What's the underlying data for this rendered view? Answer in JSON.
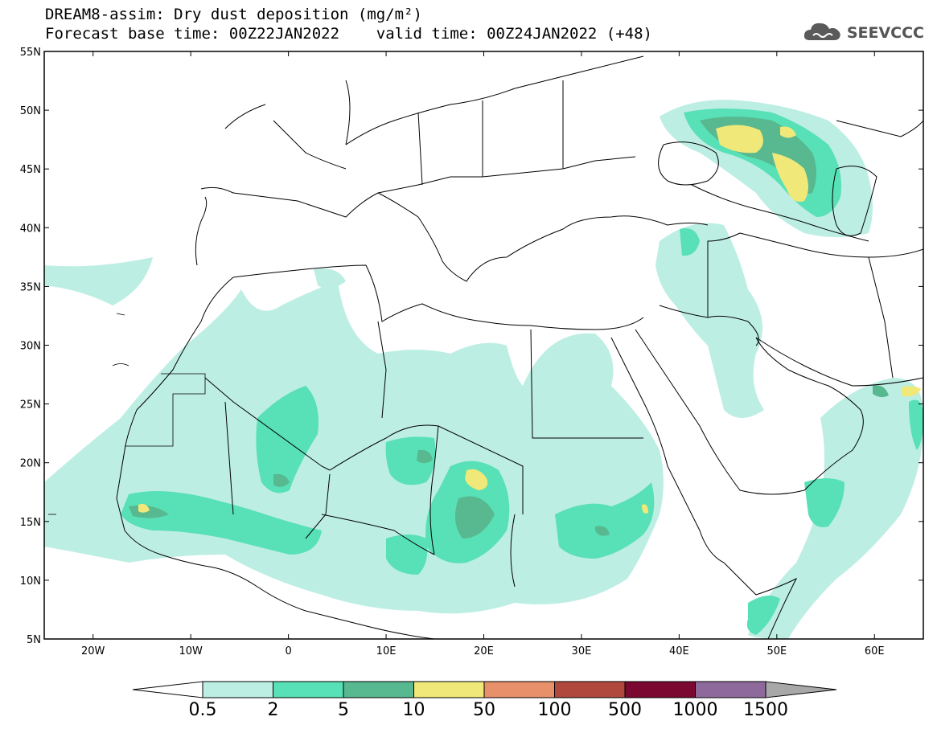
{
  "header": {
    "title": "DREAM8-assim: Dry dust deposition (mg/m²)",
    "subtitle": "Forecast base time: 00Z22JAN2022    valid time: 00Z24JAN2022 (+48)",
    "logo_text": "SEEVCCC",
    "logo_icon": "cloud-icon"
  },
  "map": {
    "lat_labels": [
      "55N",
      "50N",
      "45N",
      "40N",
      "35N",
      "30N",
      "25N",
      "20N",
      "15N",
      "10N",
      "5N"
    ],
    "lon_labels": [
      "20W",
      "10W",
      "0",
      "10E",
      "20E",
      "30E",
      "40E",
      "50E",
      "60E"
    ],
    "lon_range": [
      -25,
      65
    ],
    "lat_range": [
      5,
      55
    ]
  },
  "colorbar": {
    "labels": [
      "0.5",
      "2",
      "5",
      "10",
      "50",
      "100",
      "500",
      "1000",
      "1500"
    ],
    "colors": [
      "#bdeee4",
      "#58e0b6",
      "#58b890",
      "#f0e878",
      "#e8906a",
      "#b0483e",
      "#7a0830",
      "#8e6a9c"
    ],
    "under_color": "#ffffff",
    "over_color": "#a8a8a8"
  }
}
